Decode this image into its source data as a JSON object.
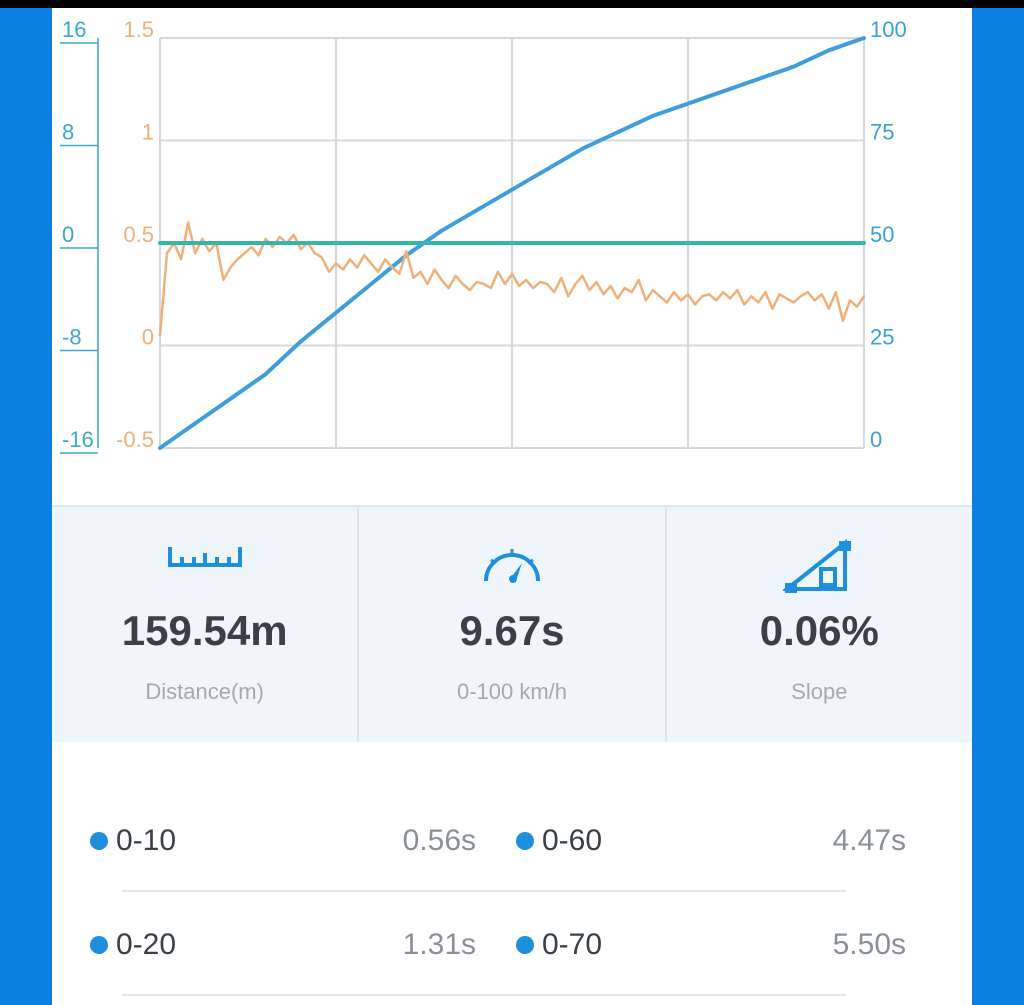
{
  "colors": {
    "background": "#0b7fe2",
    "speed_line": "#3f9ddd",
    "accel_line": "#f0b078",
    "slope_line": "#34b6b0",
    "dot": "#1e8fdd"
  },
  "chart_data": {
    "type": "line",
    "axes": {
      "left_outer_ticks": [
        "16",
        "8",
        "0",
        "-8",
        "-16"
      ],
      "left_inner_ticks": [
        "1.5",
        "1",
        "0.5",
        "0",
        "-0.5"
      ],
      "right_ticks": [
        "100",
        "75",
        "50",
        "25",
        "0"
      ],
      "left_outer_range": [
        -16,
        16
      ],
      "left_inner_range": [
        -0.5,
        1.5
      ],
      "right_range": [
        0,
        100
      ]
    },
    "grid": true,
    "x_range": [
      0,
      100
    ],
    "series": [
      {
        "color": "#3f9ddd",
        "axis": "right",
        "x": [
          0,
          5,
          10,
          15,
          20,
          25,
          30,
          35,
          40,
          45,
          50,
          55,
          60,
          65,
          70,
          75,
          80,
          85,
          90,
          95,
          100
        ],
        "values": [
          0,
          6,
          12,
          18,
          26,
          33,
          40,
          47,
          53,
          58,
          63,
          68,
          73,
          77,
          81,
          84,
          87,
          90,
          93,
          97,
          100
        ]
      },
      {
        "color": "#f0b078",
        "axis": "left_inner",
        "x": [
          0,
          1,
          2,
          3,
          4,
          5,
          6,
          7,
          8,
          9,
          10,
          11,
          12,
          13,
          14,
          15,
          16,
          17,
          18,
          19,
          20,
          21,
          22,
          23,
          24,
          25,
          26,
          27,
          28,
          29,
          30,
          31,
          32,
          33,
          34,
          35,
          36,
          37,
          38,
          39,
          40,
          41,
          42,
          43,
          44,
          45,
          46,
          47,
          48,
          49,
          50,
          51,
          52,
          53,
          54,
          55,
          56,
          57,
          58,
          59,
          60,
          61,
          62,
          63,
          64,
          65,
          66,
          67,
          68,
          69,
          70,
          71,
          72,
          73,
          74,
          75,
          76,
          77,
          78,
          79,
          80,
          81,
          82,
          83,
          84,
          85,
          86,
          87,
          88,
          89,
          90,
          91,
          92,
          93,
          94,
          95,
          96,
          97,
          98,
          99,
          100
        ],
        "values": [
          0.05,
          0.45,
          0.5,
          0.42,
          0.6,
          0.45,
          0.52,
          0.46,
          0.5,
          0.32,
          0.38,
          0.42,
          0.45,
          0.48,
          0.44,
          0.52,
          0.48,
          0.53,
          0.5,
          0.54,
          0.47,
          0.5,
          0.45,
          0.43,
          0.36,
          0.4,
          0.37,
          0.42,
          0.38,
          0.44,
          0.4,
          0.36,
          0.42,
          0.38,
          0.35,
          0.46,
          0.33,
          0.36,
          0.3,
          0.37,
          0.32,
          0.28,
          0.34,
          0.3,
          0.27,
          0.31,
          0.3,
          0.28,
          0.36,
          0.3,
          0.35,
          0.29,
          0.32,
          0.28,
          0.31,
          0.3,
          0.26,
          0.33,
          0.24,
          0.3,
          0.34,
          0.27,
          0.31,
          0.25,
          0.29,
          0.23,
          0.28,
          0.26,
          0.32,
          0.22,
          0.27,
          0.24,
          0.21,
          0.26,
          0.22,
          0.25,
          0.2,
          0.24,
          0.25,
          0.22,
          0.26,
          0.23,
          0.27,
          0.2,
          0.24,
          0.21,
          0.26,
          0.18,
          0.25,
          0.23,
          0.21,
          0.24,
          0.26,
          0.22,
          0.25,
          0.18,
          0.26,
          0.12,
          0.22,
          0.19,
          0.24
        ]
      },
      {
        "color": "#34b6b0",
        "axis": "left_outer",
        "x": [
          0,
          100
        ],
        "values": [
          0,
          0
        ]
      }
    ]
  },
  "stats": [
    {
      "icon": "ruler-icon",
      "value": "159.54m",
      "label": "Distance(m)"
    },
    {
      "icon": "speedometer-icon",
      "value": "9.67s",
      "label": "0-100 km/h"
    },
    {
      "icon": "slope-icon",
      "value": "0.06%",
      "label": "Slope"
    }
  ],
  "splits": [
    {
      "range1": "0-10",
      "time1": "0.56s",
      "range2": "0-60",
      "time2": "4.47s"
    },
    {
      "range1": "0-20",
      "time1": "1.31s",
      "range2": "0-70",
      "time2": "5.50s"
    }
  ]
}
